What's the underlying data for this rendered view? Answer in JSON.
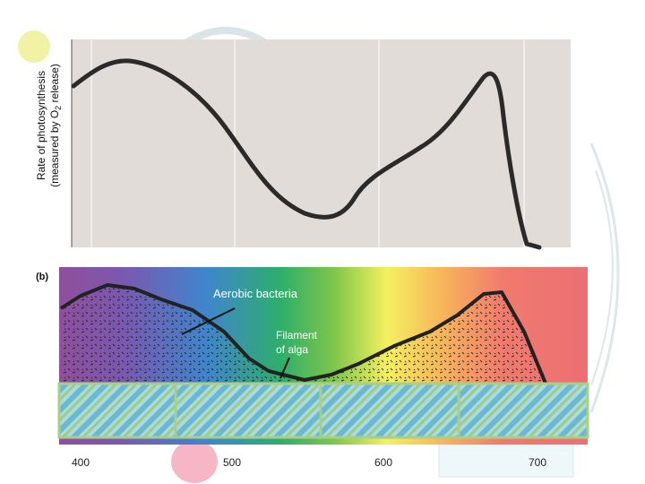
{
  "top_chart": {
    "y_label_line1": "Rate of photosynthesis",
    "y_label_line2_pre": "(measured by O",
    "y_label_sub": "2",
    "y_label_line2_post": " release)"
  },
  "panel_b": {
    "label": "(b)"
  },
  "annotations": {
    "bacteria": "Aerobic bacteria",
    "filament_line1": "Filament",
    "filament_line2": "of alga"
  },
  "x_ticks": [
    "400",
    "500",
    "600",
    "700"
  ],
  "colors": {
    "chart_bg": "#e2dcd8",
    "curve": "#2a2a2a",
    "alga": "#a9dbe2",
    "alga_border": "#a8cf8a"
  }
}
